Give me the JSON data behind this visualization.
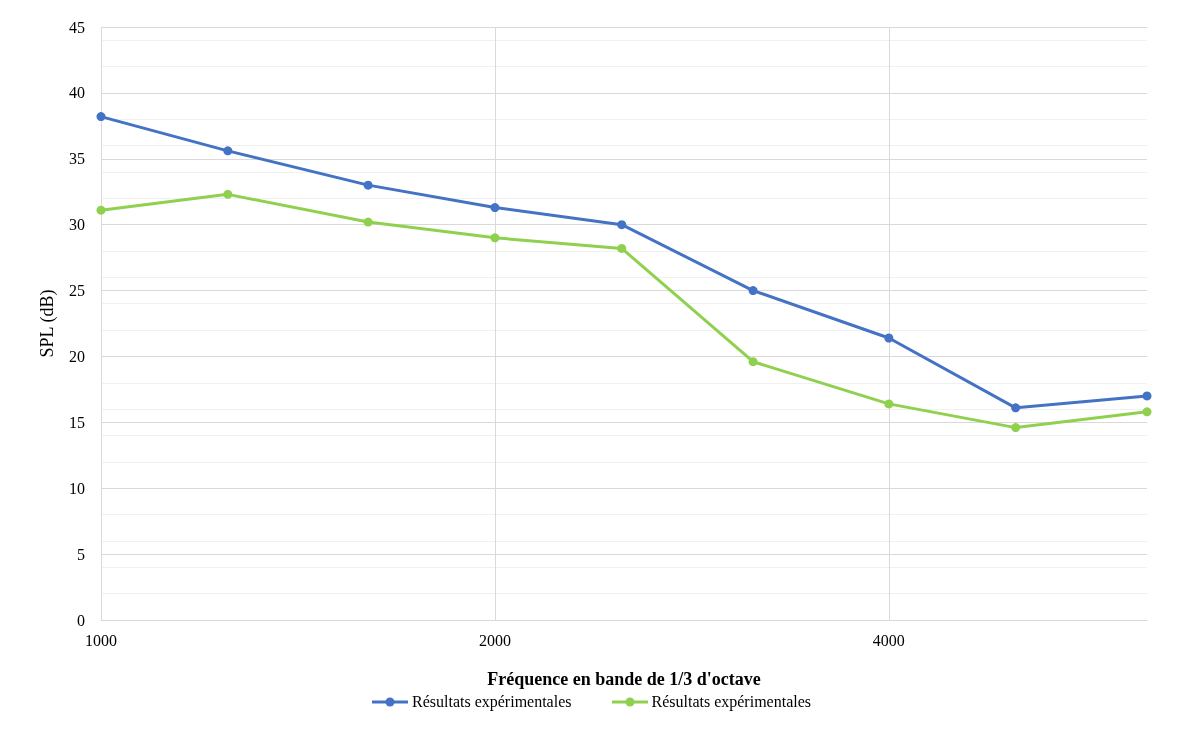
{
  "chart_data": {
    "type": "line",
    "xlabel": "Fréquence en bande de 1/3 d'octave",
    "ylabel": "SPL (dB)",
    "x": [
      1000,
      1250,
      1600,
      2000,
      2500,
      3150,
      4000,
      5000,
      6300
    ],
    "series": [
      {
        "name": "Résultats expérimentales",
        "color": "#4472c4",
        "values": [
          38.2,
          35.6,
          33.0,
          31.3,
          30.0,
          25.0,
          21.4,
          16.1,
          17.0
        ]
      },
      {
        "name": "Résultats expérimentales",
        "color": "#8fd14f",
        "values": [
          31.1,
          32.3,
          30.2,
          29.0,
          28.2,
          19.6,
          16.4,
          14.6,
          15.8
        ]
      }
    ],
    "xlim": [
      1000,
      6300
    ],
    "xticks": [
      1000,
      2000,
      4000
    ],
    "log": "x",
    "ylim": [
      0,
      45
    ],
    "yticks": [
      0,
      5,
      10,
      15,
      20,
      25,
      30,
      35,
      40,
      45
    ],
    "grid": true,
    "legend": "bottom",
    "marker": "circle",
    "line_style": "solid"
  }
}
